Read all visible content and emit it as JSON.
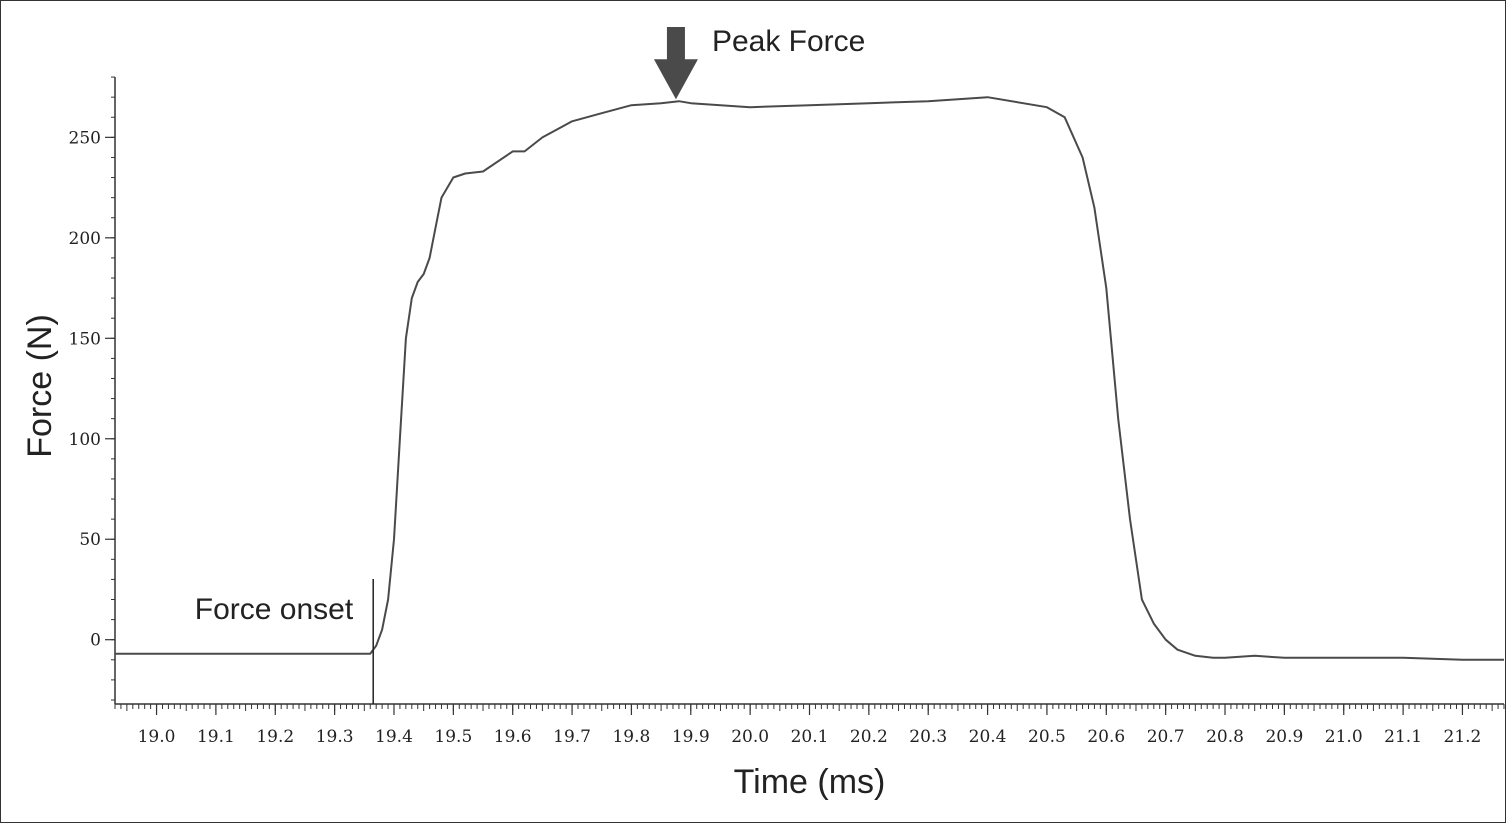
{
  "chart_data": {
    "type": "line",
    "title": "",
    "xlabel": "Time (ms)",
    "ylabel": "Force (N)",
    "xlim": [
      18.93,
      21.27
    ],
    "ylim": [
      -32,
      288
    ],
    "grid": false,
    "x_ticks": [
      19.0,
      19.1,
      19.2,
      19.3,
      19.4,
      19.5,
      19.6,
      19.7,
      19.8,
      19.9,
      20.0,
      20.1,
      20.2,
      20.3,
      20.4,
      20.5,
      20.6,
      20.7,
      20.8,
      20.9,
      21.0,
      21.1,
      21.2
    ],
    "x_tick_labels": [
      "19.0",
      "19.1",
      "19.2",
      "19.3",
      "19.4",
      "19.5",
      "19.6",
      "19.7",
      "19.8",
      "19.9",
      "20.0",
      "20.1",
      "20.2",
      "20.3",
      "20.4",
      "20.5",
      "20.6",
      "20.7",
      "20.8",
      "20.9",
      "21.0",
      "21.1",
      "21.2"
    ],
    "y_ticks": [
      0,
      50,
      100,
      150,
      200,
      250
    ],
    "y_tick_labels": [
      "0",
      "50",
      "100",
      "150",
      "200",
      "250"
    ],
    "series": [
      {
        "color": "#4a4a4a",
        "x": [
          18.93,
          19.0,
          19.1,
          19.2,
          19.3,
          19.36,
          19.37,
          19.38,
          19.39,
          19.4,
          19.41,
          19.42,
          19.43,
          19.44,
          19.45,
          19.46,
          19.47,
          19.48,
          19.5,
          19.52,
          19.55,
          19.6,
          19.62,
          19.65,
          19.7,
          19.75,
          19.8,
          19.85,
          19.88,
          19.9,
          19.95,
          20.0,
          20.1,
          20.2,
          20.3,
          20.4,
          20.5,
          20.53,
          20.56,
          20.58,
          20.6,
          20.62,
          20.64,
          20.66,
          20.68,
          20.7,
          20.72,
          20.75,
          20.78,
          20.8,
          20.85,
          20.9,
          21.0,
          21.1,
          21.2,
          21.27
        ],
        "y": [
          -7,
          -7,
          -7,
          -7,
          -7,
          -7,
          -3,
          5,
          20,
          50,
          100,
          150,
          170,
          178,
          182,
          190,
          205,
          220,
          230,
          232,
          233,
          243,
          243,
          250,
          258,
          262,
          266,
          267,
          268,
          267,
          266,
          265,
          266,
          267,
          268,
          270,
          265,
          260,
          240,
          215,
          175,
          110,
          60,
          20,
          8,
          0,
          -5,
          -8,
          -9,
          -9,
          -8,
          -9,
          -9,
          -9,
          -10,
          -10
        ]
      }
    ],
    "annotations": [
      {
        "text": "Peak Force",
        "x": 19.875,
        "y": 268,
        "marker": "arrow-down"
      },
      {
        "text": "Force onset",
        "x": 19.365,
        "y": -7,
        "marker": "vertical-line"
      }
    ]
  }
}
